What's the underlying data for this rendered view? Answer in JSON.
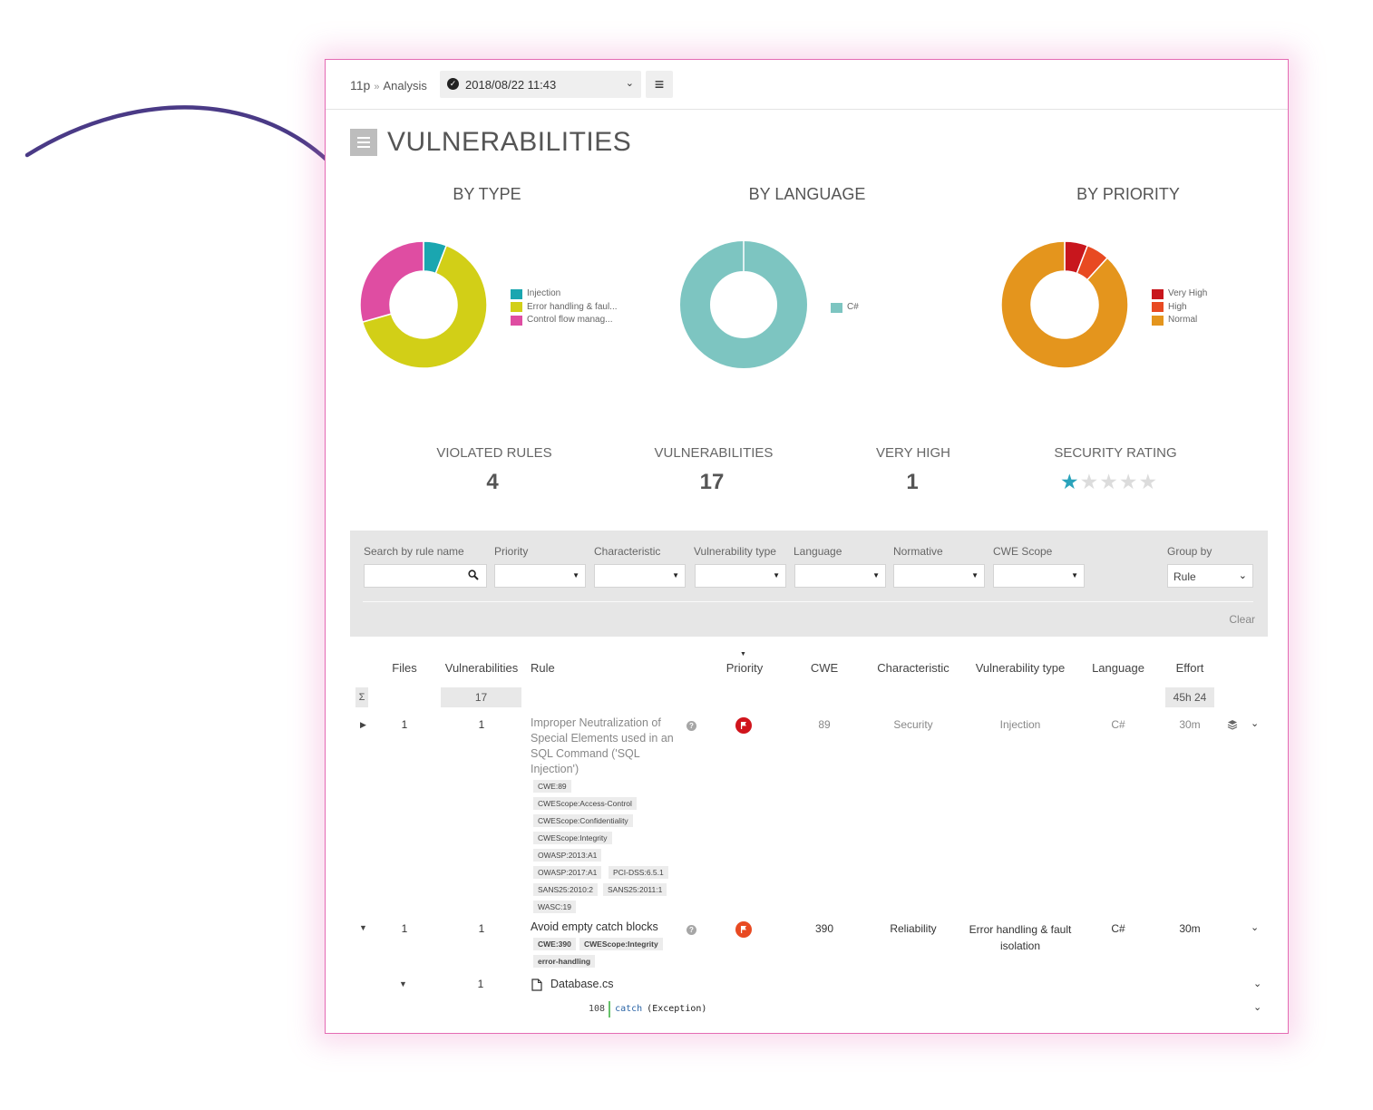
{
  "header": {
    "project": "11p",
    "separator": "»",
    "section": "Analysis",
    "analysis_date": "2018/08/22 11:43",
    "status_icon": "check-circle-icon",
    "menu_icon": "hamburger-icon"
  },
  "page": {
    "title": "VULNERABILITIES",
    "title_icon": "list-icon"
  },
  "charts": {
    "by_type_title": "BY TYPE",
    "by_language_title": "BY LANGUAGE",
    "by_priority_title": "BY PRIORITY"
  },
  "chart_data": [
    {
      "type": "pie",
      "title": "BY TYPE",
      "labels": [
        "Injection",
        "Error handling & faul...",
        "Control flow manag..."
      ],
      "values": [
        1,
        11,
        5
      ],
      "colors": [
        "#1aa6b0",
        "#d2cf17",
        "#df4da2"
      ],
      "legend": "right"
    },
    {
      "type": "pie",
      "title": "BY LANGUAGE",
      "labels": [
        "C#"
      ],
      "values": [
        17
      ],
      "colors": [
        "#7dc5c1"
      ],
      "legend": "right"
    },
    {
      "type": "pie",
      "title": "BY PRIORITY",
      "labels": [
        "Very High",
        "High",
        "Normal"
      ],
      "values": [
        1,
        1,
        15
      ],
      "colors": [
        "#c8161d",
        "#e84a22",
        "#e4951d"
      ],
      "legend": "right"
    }
  ],
  "stats": {
    "violated_rules_label": "VIOLATED RULES",
    "violated_rules_value": "4",
    "vulnerabilities_label": "VULNERABILITIES",
    "vulnerabilities_value": "17",
    "very_high_label": "VERY HIGH",
    "very_high_value": "1",
    "security_rating_label": "SECURITY RATING",
    "security_rating_stars": 1,
    "security_rating_max": 5,
    "star_color": "#2aa3bb"
  },
  "filters": {
    "search_label": "Search by rule name",
    "priority_label": "Priority",
    "characteristic_label": "Characteristic",
    "vulnerability_type_label": "Vulnerability type",
    "language_label": "Language",
    "normative_label": "Normative",
    "cwe_scope_label": "CWE Scope",
    "group_by_label": "Group by",
    "group_by_value": "Rule",
    "clear_label": "Clear"
  },
  "table": {
    "headers": {
      "files": "Files",
      "vulnerabilities": "Vulnerabilities",
      "rule": "Rule",
      "priority": "Priority",
      "cwe": "CWE",
      "characteristic": "Characteristic",
      "vulnerability_type": "Vulnerability type",
      "language": "Language",
      "effort": "Effort"
    },
    "summary": {
      "sigma": "Σ",
      "vulnerabilities": "17",
      "effort": "45h 24"
    },
    "rows": [
      {
        "files": "1",
        "vulnerabilities": "1",
        "rule_lines": [
          "Improper Neutralization of",
          "Special Elements used in an",
          "SQL Command ('SQL",
          "Injection')"
        ],
        "tags": [
          "CWE:89",
          "CWEScope:Access-Control",
          "CWEScope:Confidentiality",
          "CWEScope:Integrity",
          "OWASP:2013:A1",
          "OWASP:2017:A1",
          "PCI-DSS:6.5.1",
          "SANS25:2010:2",
          "SANS25:2011:1",
          "WASC:19"
        ],
        "cwe": "89",
        "characteristic": "Security",
        "vulnerability_type": "Injection",
        "language": "C#",
        "effort": "30m"
      },
      {
        "files": "1",
        "vulnerabilities": "1",
        "rule_lines": [
          "Avoid empty catch blocks"
        ],
        "tags": [
          "CWE:390",
          "CWEScope:Integrity",
          "error-handling"
        ],
        "cwe": "390",
        "characteristic": "Reliability",
        "vulnerability_type_lines": [
          "Error handling & fault",
          "isolation"
        ],
        "language": "C#",
        "effort": "30m",
        "file": {
          "vulnerabilities": "1",
          "name": "Database.cs",
          "line_number": "108",
          "code_keyword": "catch",
          "code_rest": "(Exception)"
        }
      }
    ]
  }
}
